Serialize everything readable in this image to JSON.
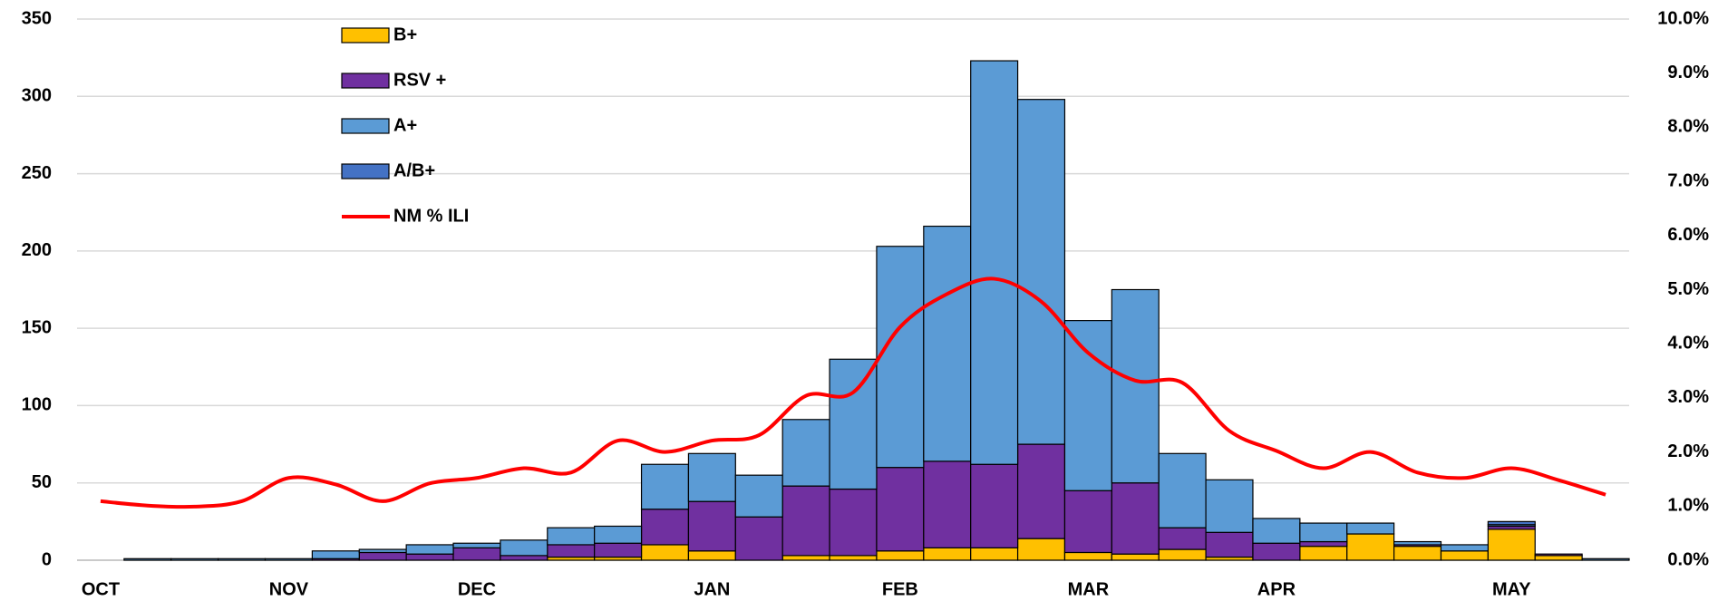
{
  "chart_data": {
    "type": "bar",
    "categories": [
      "OCT",
      null,
      null,
      null,
      "NOV",
      null,
      null,
      null,
      "DEC",
      null,
      null,
      null,
      null,
      "JAN",
      null,
      null,
      null,
      "FEB",
      null,
      null,
      null,
      "MAR",
      null,
      null,
      null,
      "APR",
      null,
      null,
      null,
      null,
      "MAY",
      null,
      null
    ],
    "series": [
      {
        "name": "B+",
        "color": "#ffc000",
        "values": [
          0,
          0,
          0,
          0,
          0,
          0,
          0,
          0,
          0,
          0,
          2,
          2,
          10,
          6,
          0,
          3,
          3,
          6,
          8,
          8,
          14,
          5,
          4,
          7,
          2,
          0,
          9,
          17,
          9,
          6,
          20,
          3,
          0
        ]
      },
      {
        "name": "RSV +",
        "color": "#7030a0",
        "values": [
          0,
          0,
          0,
          0,
          0,
          1,
          5,
          4,
          8,
          3,
          8,
          9,
          23,
          32,
          28,
          45,
          43,
          54,
          56,
          54,
          61,
          40,
          46,
          14,
          16,
          11,
          3,
          0,
          1,
          0,
          2,
          1,
          0
        ]
      },
      {
        "name": "A+",
        "color": "#5b9bd5",
        "values": [
          0,
          1,
          1,
          1,
          1,
          5,
          2,
          6,
          3,
          10,
          11,
          11,
          29,
          31,
          27,
          43,
          84,
          143,
          152,
          261,
          223,
          110,
          125,
          48,
          34,
          16,
          12,
          7,
          2,
          4,
          1,
          0,
          1
        ]
      },
      {
        "name": "A/B+",
        "color": "#4472c4",
        "values": [
          0,
          0,
          0,
          0,
          0,
          0,
          0,
          0,
          0,
          0,
          0,
          0,
          0,
          0,
          0,
          0,
          0,
          0,
          0,
          0,
          0,
          0,
          0,
          0,
          0,
          0,
          0,
          0,
          0,
          0,
          2,
          0,
          0
        ]
      },
      {
        "name": "NM % ILI",
        "color": "#ff0000",
        "type": "line",
        "axis": "y2",
        "values": [
          1.09,
          1.01,
          0.99,
          1.09,
          1.52,
          1.4,
          1.09,
          1.42,
          1.52,
          1.7,
          1.62,
          2.21,
          2.0,
          2.21,
          2.31,
          3.04,
          3.1,
          4.31,
          4.92,
          5.2,
          4.78,
          3.83,
          3.32,
          3.28,
          2.39,
          2.02,
          1.7,
          2.0,
          1.62,
          1.52,
          1.7,
          1.48,
          1.21
        ]
      }
    ],
    "ylim": [
      0,
      350
    ],
    "yticks": [
      0,
      50,
      100,
      150,
      200,
      250,
      300,
      350
    ],
    "y2lim": [
      0,
      10
    ],
    "y2ticks": [
      {
        "value": 0,
        "label": "0.0%"
      },
      {
        "value": 1,
        "label": "1.0%"
      },
      {
        "value": 2,
        "label": "2.0%"
      },
      {
        "value": 3,
        "label": "3.0%"
      },
      {
        "value": 4,
        "label": "4.0%"
      },
      {
        "value": 5,
        "label": "5.0%"
      },
      {
        "value": 6,
        "label": "6.0%"
      },
      {
        "value": 7,
        "label": "7.0%"
      },
      {
        "value": 8,
        "label": "8.0%"
      },
      {
        "value": 9,
        "label": "9.0%"
      },
      {
        "value": 10,
        "label": "10.0%"
      }
    ],
    "grid": true,
    "legend": "top-left"
  }
}
